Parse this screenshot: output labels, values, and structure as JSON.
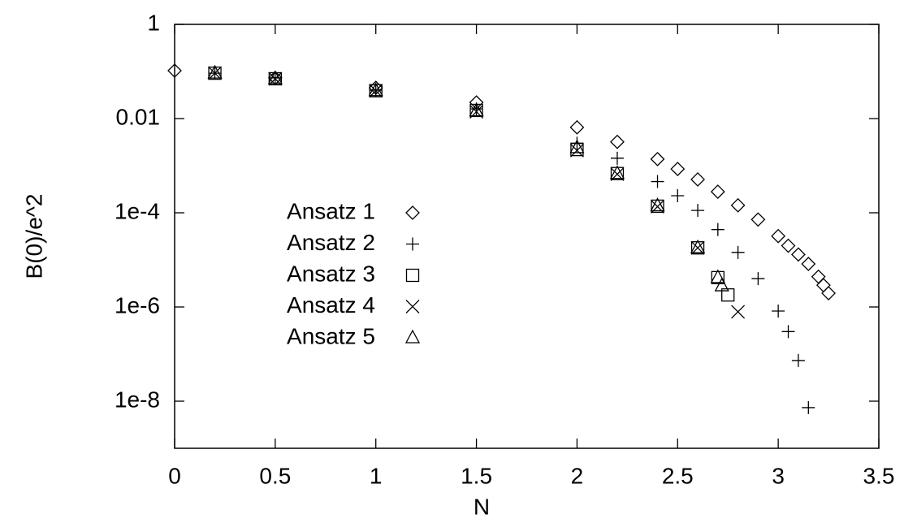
{
  "chart_data": {
    "type": "scatter",
    "x_label": "N",
    "y_label": "B(0)/e^2",
    "xlim": [
      0,
      3.5
    ],
    "xticks": [
      0,
      0.5,
      1,
      1.5,
      2,
      2.5,
      3,
      3.5
    ],
    "ylim": [
      1e-09,
      1
    ],
    "y_scale": "log",
    "yticks": [
      1,
      0.01,
      {
        "value": 0.0001,
        "label": "1e-4"
      },
      {
        "value": 1e-06,
        "label": "1e-6"
      },
      {
        "value": 1e-08,
        "label": "1e-8"
      }
    ],
    "legend": "left",
    "series": [
      {
        "name": "Ansatz 1",
        "color": "#000000",
        "marker": "diamond",
        "x": [
          0,
          0.5,
          1,
          1.5,
          2,
          2.2,
          2.4,
          2.5,
          2.6,
          2.7,
          2.8,
          2.9,
          3.0,
          3.05,
          3.1,
          3.15,
          3.2,
          3.225,
          3.25
        ],
        "values": [
          0.104,
          0.073,
          0.045,
          0.022,
          0.0065,
          0.0032,
          0.00138,
          0.00085,
          0.00051,
          0.00028,
          0.000144,
          7.2e-05,
          3.2e-05,
          2e-05,
          1.3e-05,
          8.2e-06,
          4.4e-06,
          2.9e-06,
          1.96e-06
        ]
      },
      {
        "name": "Ansatz 2",
        "color": "#000000",
        "marker": "plus",
        "x": [
          0.2,
          0.5,
          1,
          1.5,
          2,
          2.2,
          2.4,
          2.5,
          2.6,
          2.7,
          2.8,
          2.9,
          3.0,
          3.05,
          3.1,
          3.15
        ],
        "values": [
          0.092,
          0.073,
          0.04,
          0.016,
          0.003,
          0.00144,
          0.00046,
          0.00023,
          0.000112,
          4.4e-05,
          1.44e-05,
          4e-06,
          8.2e-07,
          3e-07,
          7.3e-08,
          7.3e-09
        ]
      },
      {
        "name": "Ansatz 3",
        "color": "#000000",
        "marker": "square",
        "x": [
          0.2,
          0.5,
          1,
          1.5,
          2,
          2.2,
          2.4,
          2.6,
          2.7,
          2.75
        ],
        "values": [
          0.092,
          0.07,
          0.039,
          0.0149,
          0.0022,
          0.00068,
          0.000138,
          1.8e-05,
          4.2e-06,
          1.8e-06
        ]
      },
      {
        "name": "Ansatz 4",
        "color": "#000000",
        "marker": "cross",
        "x": [
          0.2,
          0.5,
          1,
          1.5,
          2,
          2.2,
          2.4,
          2.6,
          2.8
        ],
        "values": [
          0.092,
          0.07,
          0.039,
          0.014,
          0.0021,
          0.00066,
          0.000135,
          1.8e-05,
          7.9e-07
        ]
      },
      {
        "name": "Ansatz 5",
        "color": "#000000",
        "marker": "triangle",
        "x": [
          0.2,
          0.5,
          1,
          1.5,
          2,
          2.2,
          2.4,
          2.6,
          2.7,
          2.72
        ],
        "values": [
          0.092,
          0.07,
          0.039,
          0.0145,
          0.0024,
          0.00068,
          0.00014,
          1.8e-05,
          4.2e-06,
          2.8e-06
        ]
      }
    ]
  }
}
